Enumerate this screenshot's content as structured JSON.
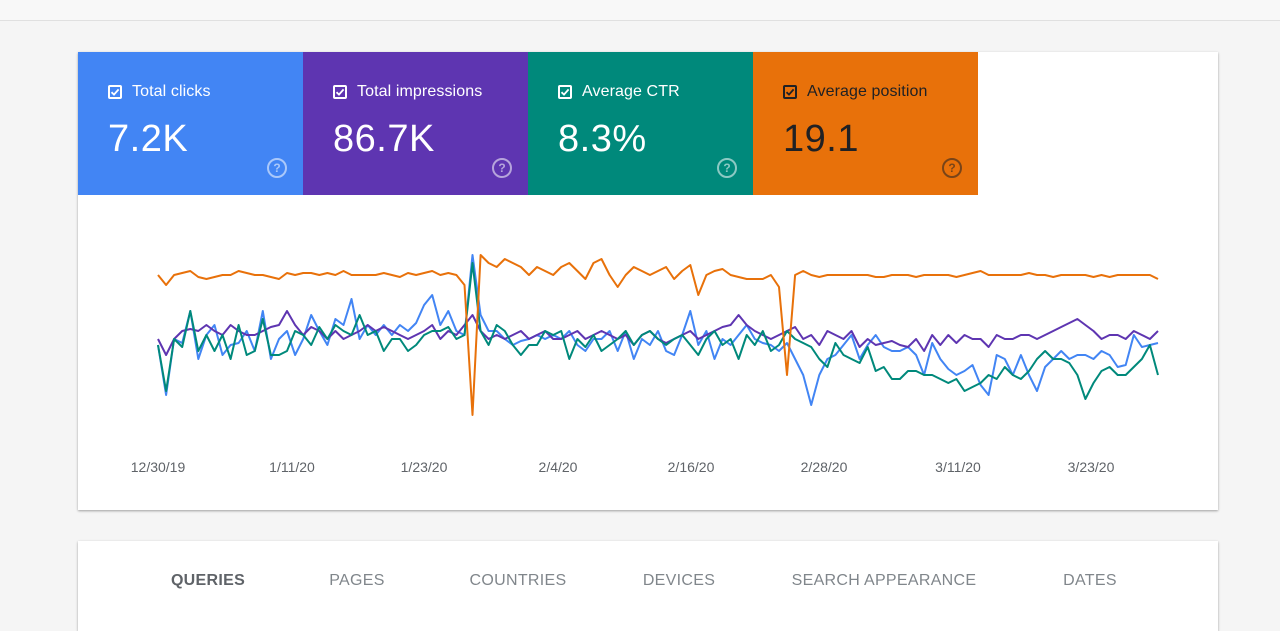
{
  "metrics": [
    {
      "label": "Total clicks",
      "value": "7.2K",
      "color": "#4285f4",
      "icon": "checkbox-checked-icon",
      "help_icon": "help-icon"
    },
    {
      "label": "Total impressions",
      "value": "86.7K",
      "color": "#5e35b1",
      "icon": "checkbox-checked-icon",
      "help_icon": "help-icon"
    },
    {
      "label": "Average CTR",
      "value": "8.3%",
      "color": "#00897b",
      "icon": "checkbox-checked-icon",
      "help_icon": "help-icon"
    },
    {
      "label": "Average position",
      "value": "19.1",
      "color": "#e8710a",
      "icon": "checkbox-checked-icon",
      "help_icon": "help-icon"
    }
  ],
  "tabs": [
    {
      "label": "QUERIES",
      "active": true
    },
    {
      "label": "PAGES",
      "active": false
    },
    {
      "label": "COUNTRIES",
      "active": false
    },
    {
      "label": "DEVICES",
      "active": false
    },
    {
      "label": "SEARCH APPEARANCE",
      "active": false
    },
    {
      "label": "DATES",
      "active": false
    }
  ],
  "chart_data": {
    "type": "line",
    "x_tick_labels": [
      "12/30/19",
      "1/11/20",
      "1/23/20",
      "2/4/20",
      "2/16/20",
      "2/28/20",
      "3/11/20",
      "3/23/20"
    ],
    "y_axis_visible": false,
    "grid": false,
    "legend": "none",
    "series": [
      {
        "name": "Total clicks",
        "color": "#4285f4",
        "values": [
          55,
          80,
          52,
          54,
          38,
          62,
          50,
          45,
          60,
          55,
          54,
          48,
          58,
          38,
          62,
          52,
          48,
          60,
          52,
          40,
          48,
          55,
          42,
          45,
          32,
          52,
          45,
          50,
          45,
          50,
          45,
          48,
          44,
          35,
          30,
          45,
          38,
          48,
          50,
          10,
          40,
          48,
          48,
          52,
          55,
          53,
          52,
          50,
          52,
          50,
          52,
          48,
          55,
          58,
          52,
          52,
          48,
          58,
          48,
          62,
          52,
          55,
          48,
          58,
          60,
          50,
          38,
          55,
          48,
          62,
          52,
          55,
          50,
          45,
          52,
          54,
          55,
          58,
          54,
          62,
          70,
          85,
          70,
          62,
          60,
          55,
          50,
          62,
          55,
          50,
          56,
          58,
          58,
          56,
          60,
          70,
          54,
          62,
          67,
          70,
          68,
          65,
          75,
          80,
          60,
          62,
          70,
          60,
          70,
          78,
          66,
          62,
          58,
          62,
          60,
          60,
          62,
          58,
          60,
          66,
          65,
          50,
          56,
          55,
          54
        ]
      },
      {
        "name": "Total impressions",
        "color": "#5e35b1",
        "values": [
          52,
          60,
          52,
          48,
          47,
          48,
          45,
          48,
          50,
          45,
          48,
          50,
          50,
          48,
          46,
          45,
          38,
          45,
          50,
          46,
          48,
          52,
          48,
          52,
          50,
          48,
          45,
          48,
          46,
          48,
          50,
          52,
          50,
          48,
          45,
          52,
          48,
          50,
          45,
          40,
          48,
          52,
          50,
          52,
          50,
          48,
          52,
          50,
          48,
          52,
          52,
          50,
          48,
          52,
          50,
          48,
          50,
          52,
          50,
          55,
          50,
          48,
          52,
          54,
          52,
          50,
          48,
          52,
          50,
          48,
          46,
          45,
          40,
          45,
          48,
          50,
          52,
          50,
          48,
          46,
          52,
          50,
          55,
          48,
          50,
          52,
          48,
          56,
          52,
          55,
          54,
          53,
          55,
          56,
          52,
          58,
          50,
          55,
          50,
          54,
          50,
          52,
          52,
          56,
          50,
          52,
          52,
          50,
          50,
          52,
          50,
          48,
          46,
          44,
          42,
          45,
          48,
          52,
          50,
          50,
          52,
          48,
          50,
          52,
          48
        ]
      },
      {
        "name": "Average CTR",
        "color": "#00897b",
        "values": [
          55,
          78,
          52,
          56,
          38,
          58,
          50,
          58,
          50,
          62,
          45,
          60,
          58,
          42,
          60,
          60,
          58,
          48,
          50,
          55,
          46,
          52,
          45,
          48,
          50,
          40,
          50,
          48,
          58,
          52,
          52,
          58,
          55,
          50,
          48,
          48,
          46,
          52,
          50,
          14,
          48,
          55,
          45,
          48,
          55,
          60,
          55,
          55,
          48,
          50,
          48,
          62,
          52,
          56,
          50,
          58,
          55,
          52,
          48,
          55,
          50,
          48,
          52,
          55,
          52,
          50,
          55,
          60,
          52,
          48,
          55,
          52,
          62,
          50,
          55,
          48,
          58,
          55,
          48,
          52,
          54,
          56,
          62,
          66,
          54,
          60,
          62,
          64,
          56,
          68,
          66,
          72,
          72,
          68,
          68,
          70,
          70,
          72,
          74,
          72,
          78,
          76,
          74,
          70,
          72,
          66,
          70,
          72,
          68,
          62,
          58,
          62,
          62,
          64,
          70,
          82,
          74,
          68,
          66,
          70,
          70,
          66,
          62,
          55,
          70
        ]
      },
      {
        "name": "Average position",
        "color": "#e8710a",
        "values": [
          20,
          25,
          20,
          19,
          18,
          21,
          22,
          21,
          20,
          20,
          18,
          19,
          20,
          20,
          21,
          22,
          19,
          20,
          19,
          19,
          20,
          19,
          20,
          18,
          20,
          20,
          20,
          20,
          19,
          20,
          21,
          19,
          20,
          19,
          18,
          20,
          19,
          20,
          25,
          90,
          10,
          14,
          16,
          12,
          14,
          16,
          20,
          16,
          18,
          20,
          16,
          14,
          18,
          22,
          14,
          12,
          20,
          26,
          20,
          16,
          18,
          20,
          18,
          16,
          22,
          18,
          15,
          30,
          20,
          18,
          17,
          20,
          21,
          22,
          22,
          22,
          20,
          26,
          70,
          20,
          18,
          20,
          21,
          20,
          20,
          20,
          20,
          20,
          20,
          21,
          21,
          20,
          20,
          20,
          21,
          20,
          20,
          20,
          20,
          21,
          20,
          19,
          18,
          20,
          20,
          20,
          20,
          20,
          19,
          20,
          20,
          21,
          20,
          20,
          20,
          20,
          21,
          20,
          21,
          20,
          20,
          20,
          20,
          20,
          22
        ]
      }
    ]
  }
}
